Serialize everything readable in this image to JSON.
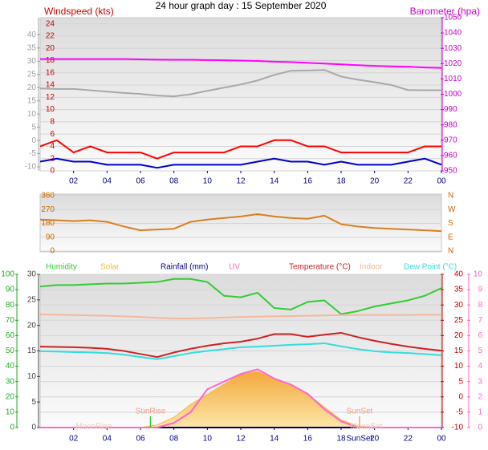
{
  "chart_data": [
    {
      "type": "line",
      "title": "24 hour graph day : 15 September 2020",
      "ylabel": "Windspeed (kts)",
      "y2label": "Barometer (hpa)",
      "x": [
        0,
        1,
        2,
        3,
        4,
        5,
        6,
        7,
        8,
        9,
        10,
        11,
        12,
        13,
        14,
        15,
        16,
        17,
        18,
        19,
        20,
        21,
        22,
        23,
        24
      ],
      "xlim": [
        0,
        24
      ],
      "xticks": [
        {
          "value": 2,
          "label": "02"
        },
        {
          "value": 4,
          "label": "04"
        },
        {
          "value": 6,
          "label": "06"
        },
        {
          "value": 8,
          "label": "08"
        },
        10,
        12,
        14,
        16,
        18,
        20,
        22,
        {
          "value": 24,
          "label": "00"
        }
      ],
      "ylim": [
        0,
        25
      ],
      "yticks": [
        0,
        2,
        4,
        6,
        8,
        10,
        12,
        14,
        16,
        18,
        20,
        22,
        24
      ],
      "ycolor": "#cc0000",
      "y2lim": [
        950,
        1050
      ],
      "y2ticks": [
        950,
        960,
        970,
        980,
        990,
        1000,
        1010,
        1020,
        1030,
        1040,
        1050
      ],
      "y2color": "#cc00cc",
      "y3lim": [
        -11.5,
        46.5
      ],
      "y3ticks": [
        -10,
        -5,
        0,
        5,
        10,
        15,
        20,
        25,
        30,
        35,
        40
      ],
      "y3color": "#a0a0a0",
      "grid": true,
      "series": [
        {
          "color": "#a8a8a8",
          "axis": "y3",
          "values": [
            19.7,
            19.5,
            19.5,
            19,
            18.5,
            18,
            17.6,
            17,
            16.7,
            17.5,
            18.8,
            20,
            21.2,
            22.7,
            24.8,
            26.4,
            26.5,
            26.7,
            24.2,
            23,
            22.1,
            21,
            19.1,
            19,
            19
          ]
        },
        {
          "color": "#ff00ff",
          "axis": "y2",
          "values": [
            1023,
            1023,
            1023,
            1023,
            1023,
            1023,
            1022.8,
            1022.6,
            1022.5,
            1022.5,
            1022.3,
            1022.2,
            1022,
            1021.7,
            1021.3,
            1021,
            1020.5,
            1020,
            1019.5,
            1019,
            1018.5,
            1018.2,
            1018,
            1017.5,
            1017.2
          ]
        },
        {
          "color": "#ff0000",
          "values": [
            4,
            5,
            3,
            4,
            3,
            3,
            3,
            2,
            3,
            3,
            3,
            3,
            4,
            4,
            5,
            5,
            4,
            4,
            3,
            3,
            3,
            3,
            3,
            4,
            4
          ]
        },
        {
          "color": "#0000cc",
          "values": [
            1.5,
            2,
            1.5,
            1.5,
            1,
            1,
            1,
            0.5,
            1,
            1,
            1,
            1,
            1,
            1.5,
            2,
            1.5,
            1.5,
            1,
            1.5,
            1,
            1,
            1,
            1.5,
            2,
            1
          ]
        }
      ]
    },
    {
      "type": "line",
      "x": [
        0,
        1,
        2,
        3,
        4,
        5,
        6,
        7,
        8,
        9,
        10,
        11,
        12,
        13,
        14,
        15,
        16,
        17,
        18,
        19,
        20,
        21,
        22,
        23,
        24
      ],
      "xlim": [
        0,
        24
      ],
      "ylim": [
        0,
        360
      ],
      "yticks": [
        0,
        90,
        180,
        270,
        360
      ],
      "ycolor": "#cc6600",
      "y2lim": [
        0,
        360
      ],
      "y2ticks": [
        {
          "value": 0,
          "label": "N"
        },
        {
          "value": 90,
          "label": "E"
        },
        {
          "value": 180,
          "label": "S"
        },
        {
          "value": 270,
          "label": "W"
        },
        {
          "value": 360,
          "label": "N"
        }
      ],
      "y2color": "#cc6600",
      "grid": true,
      "series": [
        {
          "color": "#d87f1e",
          "values": [
            205,
            200,
            195,
            200,
            190,
            160,
            135,
            140,
            145,
            190,
            205,
            215,
            225,
            240,
            225,
            215,
            210,
            230,
            175,
            160,
            150,
            145,
            140,
            135,
            130
          ]
        }
      ]
    },
    {
      "type": "line",
      "x": [
        0,
        1,
        2,
        3,
        4,
        5,
        6,
        7,
        8,
        9,
        10,
        11,
        12,
        13,
        14,
        15,
        16,
        17,
        18,
        19,
        20,
        21,
        22,
        23,
        24
      ],
      "xlim": [
        0,
        24
      ],
      "xticks": [
        {
          "value": 2,
          "label": "02"
        },
        {
          "value": 4,
          "label": "04"
        },
        {
          "value": 6,
          "label": "06"
        },
        {
          "value": 8,
          "label": "08"
        },
        10,
        12,
        14,
        16,
        18,
        20,
        22,
        {
          "value": 24,
          "label": "00"
        }
      ],
      "ylim": [
        0,
        100
      ],
      "yticks": [
        0,
        10,
        20,
        30,
        40,
        50,
        60,
        70,
        80,
        90,
        100
      ],
      "ycolor": "#22aa22",
      "y2lim": [
        -10,
        40
      ],
      "y2ticks": [
        -10,
        -5,
        0,
        5,
        10,
        15,
        20,
        25,
        30,
        35,
        40
      ],
      "y2color": "#cc0000",
      "y3lim": [
        0,
        30
      ],
      "y3ticks": [
        0,
        5,
        10,
        15,
        20,
        25,
        30
      ],
      "y3color": "#444444",
      "y4lim": [
        0,
        10
      ],
      "y4ticks": [
        0,
        1,
        2,
        3,
        4,
        5,
        6,
        7,
        8,
        9,
        10
      ],
      "y4color": "#ff66cc",
      "grid": true,
      "series": [
        {
          "name": "Humidity",
          "color": "#33cc33",
          "values": [
            92,
            93,
            93,
            93.5,
            94,
            94,
            94.5,
            95,
            97,
            97,
            95,
            86,
            85,
            88,
            78,
            77,
            82,
            83,
            74,
            76,
            79,
            81,
            83,
            86,
            91
          ]
        },
        {
          "name": "Solar",
          "color": "#f5b942",
          "axis": "y3",
          "style": "area",
          "values": [
            0,
            0,
            0,
            0,
            0,
            0,
            0,
            0.5,
            2,
            4.5,
            6.5,
            8.5,
            10.5,
            11,
            9.5,
            8.5,
            6.5,
            4,
            1.5,
            0.3,
            0,
            0,
            0,
            0,
            0
          ]
        },
        {
          "name": "Rainfall (mm)",
          "color": "#000080",
          "axis": "y3",
          "values": [
            0,
            0,
            0,
            0,
            0,
            0,
            0,
            0,
            0,
            0,
            0,
            0,
            0,
            0,
            0,
            0,
            0,
            0,
            0,
            0,
            0,
            0,
            0,
            0,
            0
          ]
        },
        {
          "name": "UV",
          "color": "#ff66cc",
          "axis": "y4",
          "values": [
            0,
            0,
            0,
            0,
            0,
            0,
            0,
            0,
            0.3,
            1,
            2.5,
            3,
            3.5,
            3.8,
            3.2,
            2.8,
            2.2,
            1.2,
            0.4,
            0,
            0,
            0,
            0,
            0,
            0
          ]
        },
        {
          "name": "Temperature (°C)",
          "color": "#cc2222",
          "axis": "y2",
          "values": [
            16.4,
            16.3,
            16.2,
            16,
            15.7,
            15,
            14,
            13,
            14.5,
            15.7,
            16.7,
            17.5,
            18,
            19,
            20.5,
            20.5,
            19.6,
            20.3,
            20.9,
            19.5,
            18.3,
            17.3,
            16.4,
            15.7,
            15.1
          ]
        },
        {
          "name": "Indoor",
          "color": "#f4b89a",
          "axis": "y2",
          "values": [
            26.9,
            26.8,
            26.7,
            26.6,
            26.5,
            26.3,
            26.1,
            25.8,
            25.6,
            25.6,
            25.7,
            25.9,
            26.1,
            26.2,
            26.3,
            26.4,
            26.5,
            26.6,
            26.7,
            26.7,
            26.7,
            26.7,
            26.7,
            26.8,
            26.8
          ]
        },
        {
          "name": "Dew Point (°C)",
          "color": "#33dddd",
          "axis": "y2",
          "values": [
            14.9,
            14.8,
            14.6,
            14.5,
            14.3,
            13.8,
            13,
            12.3,
            13.3,
            14.3,
            15,
            15.6,
            16.2,
            16.4,
            16.7,
            17,
            17.2,
            17.5,
            16.5,
            15.6,
            14.9,
            14.5,
            14.3,
            14,
            13.6
          ]
        }
      ],
      "annotations": [
        {
          "text": "MoonRise",
          "x": 3.2
        },
        {
          "text": "SunRise",
          "x": 6.6
        },
        {
          "text": "SunSet",
          "x": 19.1
        },
        {
          "text": "MoonSet",
          "x": 19.5
        },
        {
          "text": "SunSet",
          "x": 19.1
        }
      ]
    }
  ]
}
